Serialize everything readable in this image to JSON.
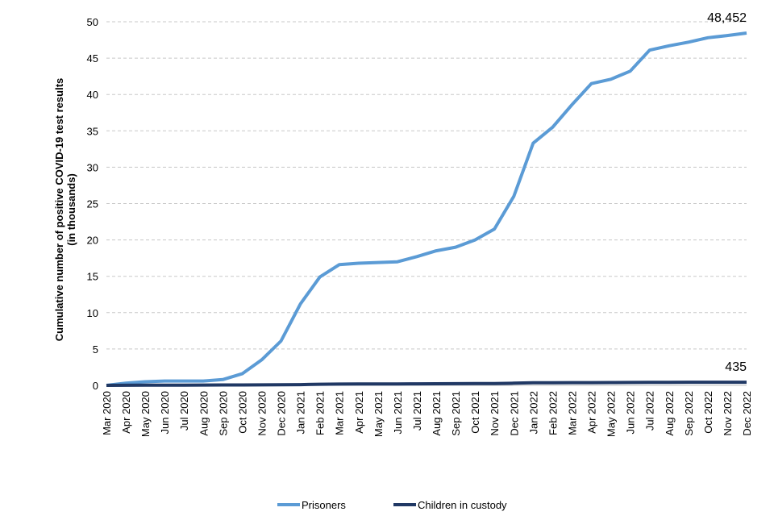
{
  "chart_data": {
    "type": "line",
    "title": "",
    "ylabel": [
      "Cumulative number of positive  COVID-19 test results",
      "(in thousands)"
    ],
    "xlabel": "",
    "ylim": [
      0,
      50
    ],
    "yticks": [
      0,
      5,
      10,
      15,
      20,
      25,
      30,
      35,
      40,
      45,
      50
    ],
    "grid": "horizontal dashed",
    "legend": "bottom",
    "categories": [
      "Mar 2020",
      "Apr 2020",
      "May 2020",
      "Jun 2020",
      "Jul 2020",
      "Aug 2020",
      "Sep 2020",
      "Oct 2020",
      "Nov 2020",
      "Dec 2020",
      "Jan 2021",
      "Feb 2021",
      "Mar 2021",
      "Apr 2021",
      "May 2021",
      "Jun 2021",
      "Jul 2021",
      "Aug 2021",
      "Sep 2021",
      "Oct 2021",
      "Nov 2021",
      "Dec 2021",
      "Jan 2022",
      "Feb 2022",
      "Mar 2022",
      "Apr 2022",
      "May 2022",
      "Jun 2022",
      "Jul 2022",
      "Aug 2022",
      "Sep 2022",
      "Oct 2022",
      "Nov 2022",
      "Dec 2022"
    ],
    "series": [
      {
        "name": "Prisoners",
        "color": "#5B9BD5",
        "values": [
          0.0,
          0.3,
          0.5,
          0.6,
          0.6,
          0.6,
          0.8,
          1.6,
          3.5,
          6.1,
          11.2,
          14.9,
          16.6,
          16.8,
          16.9,
          17.0,
          17.7,
          18.5,
          19.0,
          20.0,
          21.5,
          26.0,
          33.3,
          35.5,
          38.6,
          41.5,
          42.1,
          43.2,
          46.1,
          46.7,
          47.2,
          47.8,
          48.1,
          48.452
        ],
        "end_label": "48,452"
      },
      {
        "name": "Children in custody",
        "color": "#203864",
        "values": [
          0.0,
          0.01,
          0.02,
          0.03,
          0.03,
          0.04,
          0.05,
          0.06,
          0.07,
          0.08,
          0.1,
          0.15,
          0.18,
          0.19,
          0.2,
          0.2,
          0.21,
          0.22,
          0.23,
          0.24,
          0.25,
          0.3,
          0.36,
          0.37,
          0.38,
          0.38,
          0.39,
          0.4,
          0.42,
          0.42,
          0.43,
          0.43,
          0.434,
          0.435
        ],
        "end_label": "435"
      }
    ]
  }
}
